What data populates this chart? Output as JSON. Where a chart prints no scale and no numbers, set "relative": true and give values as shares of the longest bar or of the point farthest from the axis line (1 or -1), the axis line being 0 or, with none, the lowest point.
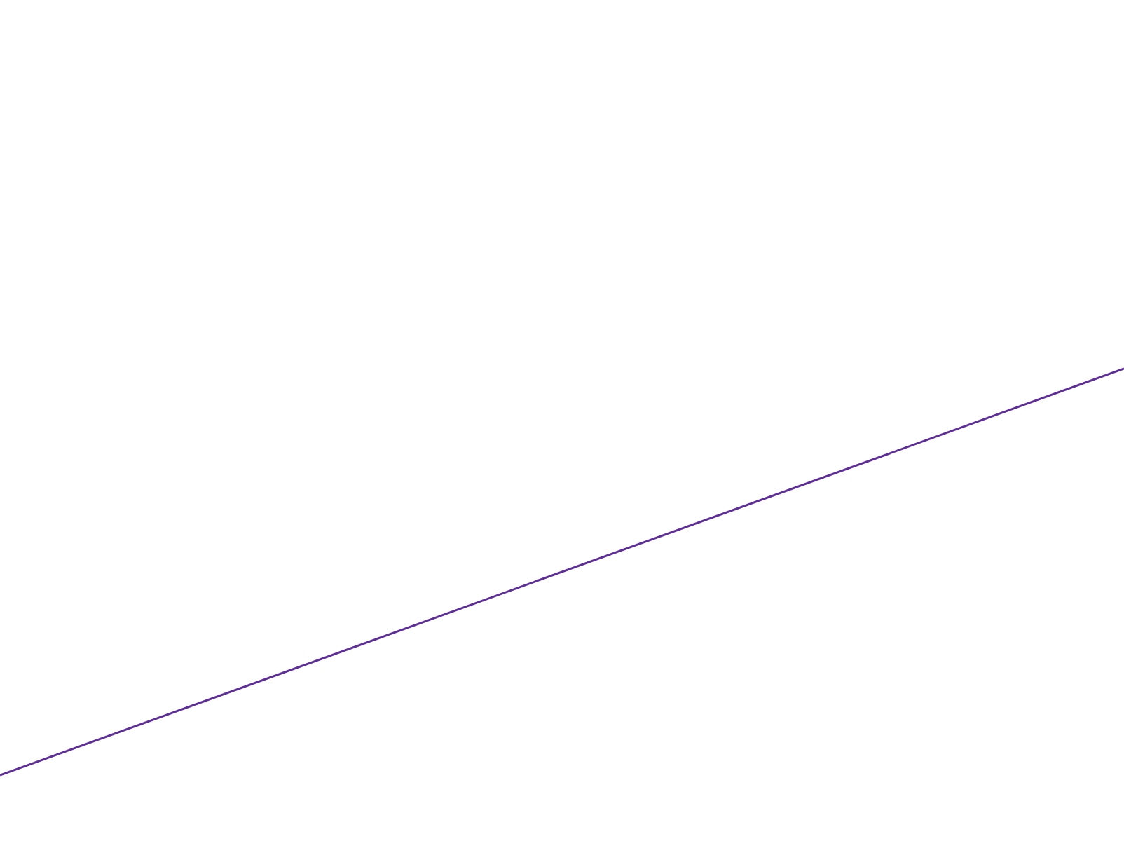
{
  "chart_data": {
    "type": "line",
    "relative": true,
    "categories": [
      null,
      null
    ],
    "series": [
      {
        "color": "#5e2d9a",
        "values": [
          0,
          1
        ]
      }
    ]
  }
}
